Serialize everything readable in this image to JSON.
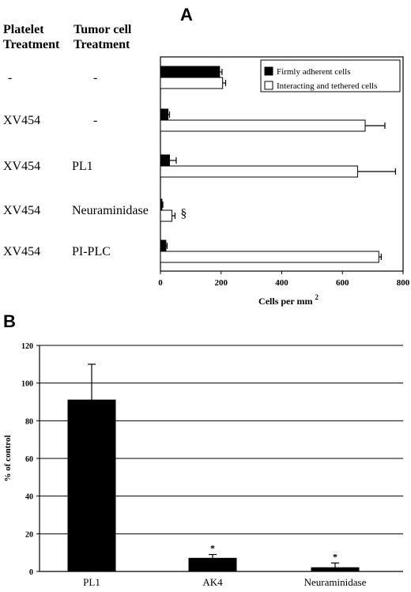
{
  "chart_data": [
    {
      "panel": "A",
      "type": "bar",
      "orientation": "horizontal",
      "column_headers": {
        "platelet": [
          "Platelet",
          "Treatment"
        ],
        "tumor": [
          "Tumor cell",
          "Treatment"
        ]
      },
      "rows": [
        {
          "platelet": "-",
          "tumor": "-",
          "annotation": ""
        },
        {
          "platelet": "XV454",
          "tumor": "-",
          "annotation": ""
        },
        {
          "platelet": "XV454",
          "tumor": "PL1",
          "annotation": ""
        },
        {
          "platelet": "XV454",
          "tumor": "Neuraminidase",
          "annotation": "§"
        },
        {
          "platelet": "XV454",
          "tumor": "PI-PLC",
          "annotation": ""
        }
      ],
      "series": [
        {
          "name": "Firmly adherent cells",
          "color": "#000000",
          "values": [
            195,
            25,
            30,
            5,
            18
          ],
          "errors": [
            8,
            5,
            22,
            3,
            4
          ]
        },
        {
          "name": "Interacting and tethered cells",
          "color": "#ffffff",
          "values": [
            205,
            675,
            650,
            38,
            720
          ],
          "errors": [
            10,
            65,
            125,
            10,
            8
          ]
        }
      ],
      "xlim": [
        0,
        800
      ],
      "xticks": [
        0,
        200,
        400,
        600,
        800
      ],
      "xlabel": "Cells per mm",
      "xlabel_sup": "2",
      "legend_position": "top-right"
    },
    {
      "panel": "B",
      "type": "bar",
      "orientation": "vertical",
      "categories": [
        "PL1",
        "AK4",
        "Neuraminidase"
      ],
      "values": [
        91,
        7,
        2
      ],
      "errors": [
        19,
        2,
        2.5
      ],
      "annotations": [
        "",
        "*",
        "*"
      ],
      "ylim": [
        0,
        120
      ],
      "yticks": [
        0,
        20,
        40,
        60,
        80,
        100,
        120
      ],
      "ylabel": "% of control",
      "grid": true,
      "bar_color": "#000000"
    }
  ]
}
